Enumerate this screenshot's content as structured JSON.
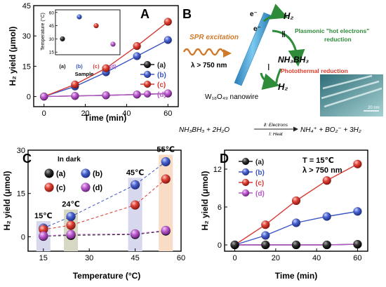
{
  "colors": {
    "a": "#1b1b1b",
    "b": "#3b55c2",
    "c": "#d63a32",
    "d": "#b656c8",
    "arrow_green": "#2e8b3a",
    "photothermal_red": "#e03a2a",
    "nanowire": "#3fa2d4",
    "spr": "#cf7a2a"
  },
  "panelA": {
    "letter": "A",
    "ylabel": "H₂ yield (μmol)",
    "xlabel": "Time (min)",
    "legend": [
      "(a)",
      "(b)",
      "(c)",
      "(d)"
    ],
    "inset": {
      "ylabel": "Temperature (°C)",
      "xlabel": "Sample",
      "yticks": [
        "15",
        "30",
        "45",
        "60"
      ],
      "xticks": [
        "(a)",
        "(b)",
        "(c)",
        "(d)"
      ]
    }
  },
  "panelB": {
    "letter": "B",
    "spr_label": "SPR excitation",
    "wavelength": "λ > 750 nm",
    "electron": "e⁻",
    "h2_top": "H₂",
    "h2_bottom": "H₂",
    "roman_two": "Ⅱ",
    "roman_one": "Ⅰ",
    "hot_electron_line1": "Plasmonic \"hot electrons\"",
    "hot_electron_line2": "reduction",
    "nh3bh3": "NH₃BH₃",
    "photothermal": "Photothermal reduction",
    "nanowire": "W₁₈O₄₉ nanowire",
    "scale": "20 nm",
    "equation_left": "NH₃BH₃ + 2H₂O",
    "equation_top": "Ⅱ: Electrons",
    "equation_bottom": "Ⅰ: Heat",
    "equation_right": "NH₄⁺ + BO₂⁻ + 3H₂"
  },
  "panelC": {
    "letter": "C",
    "title": "In dark",
    "ylabel": "H₂ yield (μmol)",
    "xlabel": "Temperature (°C)",
    "legend": [
      "(a)",
      "(b)",
      "(c)",
      "(d)"
    ],
    "temp_labels": [
      "15℃",
      "24℃",
      "45℃",
      "55℃"
    ]
  },
  "panelD": {
    "letter": "D",
    "cond1": "T = 15℃",
    "cond2": "λ > 750 nm",
    "ylabel": "H₂ yield (μmol)",
    "xlabel": "Time (min)",
    "legend": [
      "(a)",
      "(b)",
      "(c)",
      "(d)"
    ]
  },
  "chart_data": [
    {
      "panel": "A",
      "type": "line",
      "xlabel": "Time (min)",
      "ylabel": "H₂ yield (μmol)",
      "xlim": [
        -5,
        65
      ],
      "ylim": [
        -5,
        45
      ],
      "xticks": [
        0,
        20,
        40,
        60
      ],
      "yticks": [
        0,
        15,
        30,
        45
      ],
      "x": [
        0,
        15,
        30,
        45,
        60
      ],
      "series": [
        {
          "name": "(a)",
          "values": [
            0,
            0.3,
            0.6,
            1.0,
            1.5
          ]
        },
        {
          "name": "(b)",
          "values": [
            0,
            5,
            12,
            20,
            28
          ]
        },
        {
          "name": "(c)",
          "values": [
            0,
            6,
            14,
            25,
            37
          ]
        },
        {
          "name": "(d)",
          "values": [
            0,
            0.3,
            0.6,
            1.0,
            1.6
          ]
        }
      ]
    },
    {
      "panel": "A-inset",
      "type": "scatter",
      "xlabel": "Sample",
      "ylabel": "Temperature (°C)",
      "categories": [
        "(a)",
        "(b)",
        "(c)",
        "(d)"
      ],
      "ylim": [
        12,
        63
      ],
      "values": [
        30,
        55,
        45,
        24
      ]
    },
    {
      "panel": "C",
      "type": "scatter",
      "title": "In dark",
      "xlabel": "Temperature (°C)",
      "ylabel": "H₂ yield (μmol)",
      "xlim": [
        10,
        60
      ],
      "ylim": [
        -5,
        30
      ],
      "xticks": [
        15,
        30,
        45,
        60
      ],
      "yticks": [
        0,
        15,
        30
      ],
      "x": [
        15,
        24,
        45,
        55
      ],
      "series": [
        {
          "name": "(a)",
          "values": [
            0.2,
            0.5,
            0.8,
            2.0
          ]
        },
        {
          "name": "(b)",
          "values": [
            3,
            7,
            18,
            26
          ]
        },
        {
          "name": "(c)",
          "values": [
            2.5,
            4,
            11,
            20
          ]
        },
        {
          "name": "(d)",
          "values": [
            0.3,
            0.8,
            1.0,
            2.2
          ]
        }
      ]
    },
    {
      "panel": "D",
      "type": "line",
      "xlabel": "Time (min)",
      "ylabel": "H₂ yield (μmol)",
      "xlim": [
        -5,
        65
      ],
      "ylim": [
        -1,
        15
      ],
      "xticks": [
        0,
        20,
        40,
        60
      ],
      "yticks": [
        0,
        6,
        12
      ],
      "x": [
        0,
        15,
        30,
        45,
        60
      ],
      "series": [
        {
          "name": "(a)",
          "values": [
            0,
            0,
            0,
            0,
            0.1
          ]
        },
        {
          "name": "(b)",
          "values": [
            0,
            1.5,
            3.5,
            4.5,
            5.3
          ]
        },
        {
          "name": "(c)",
          "values": [
            0,
            3.2,
            7,
            10.2,
            12.8
          ]
        },
        {
          "name": "(d)",
          "values": [
            0,
            0,
            0,
            0,
            0.1
          ]
        }
      ]
    }
  ]
}
